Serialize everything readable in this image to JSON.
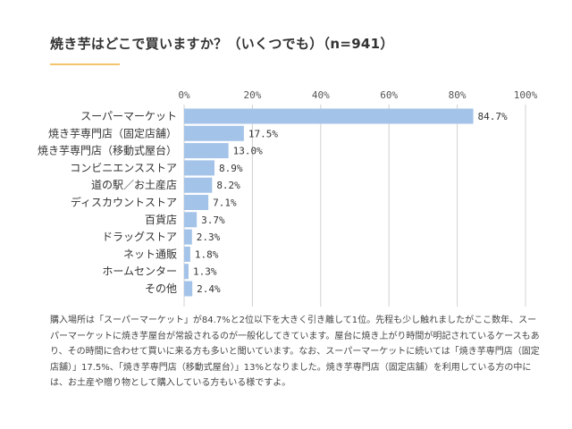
{
  "page": {
    "title": "焼き芋はどこで買いますか？（いくつでも）（n=941）",
    "description": "購入場所は「スーパーマーケット」が84.7%と2位以下を大きく引き離して1位。先程も少し触れましたがここ数年、スーパーマーケットに焼き芋屋台が常設されるのが一般化してきています。屋台に焼き上がり時間が明記されているケースもあり、その時間に合わせて買いに来る方も多いと聞いています。なお、スーパーマーケットに続いては「焼き芋専門店（固定店舗）」17.5%、「焼き芋専門店（移動式屋台）」13%となりました。焼き芋専門店（固定店舗）を利用している方の中には、お土産や贈り物として購入している方もいる様ですよ。"
  },
  "colors": {
    "bar": "#a4c3e8",
    "grid": "#d0d0d0",
    "accent": "#f3c46b"
  },
  "chart_data": {
    "type": "bar",
    "orientation": "horizontal",
    "categories": [
      "スーパーマーケット",
      "焼き芋専門店（固定店舗）",
      "焼き芋専門店（移動式屋台）",
      "コンビニエンスストア",
      "道の駅／お土産店",
      "ディスカウントストア",
      "百貨店",
      "ドラッグストア",
      "ネット通販",
      "ホームセンター",
      "その他"
    ],
    "values": [
      84.7,
      17.5,
      13.0,
      8.9,
      8.2,
      7.1,
      3.7,
      2.3,
      1.8,
      1.3,
      2.4
    ],
    "value_labels": [
      "84.7%",
      "17.5%",
      "13.0%",
      "8.9%",
      "8.2%",
      "7.1%",
      "3.7%",
      "2.3%",
      "1.8%",
      "1.3%",
      "2.4%"
    ],
    "xticks": [
      "0%",
      "20%",
      "40%",
      "60%",
      "80%",
      "100%"
    ],
    "xlim": [
      0,
      100
    ],
    "axis_position": "top",
    "grid": true,
    "legend": "none"
  }
}
